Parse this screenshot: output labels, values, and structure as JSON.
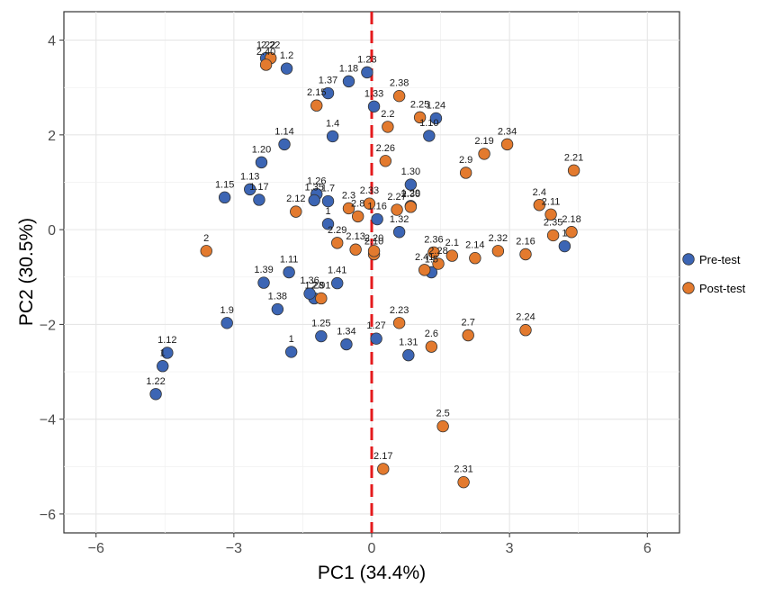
{
  "chart_data": {
    "type": "scatter",
    "title": "",
    "xlabel": "PC1 (34.4%)",
    "ylabel": "PC2 (30.5%)",
    "xlim": [
      -6.7,
      6.7
    ],
    "ylim": [
      -6.4,
      4.6
    ],
    "xticks": [
      -6,
      -3,
      0,
      3,
      6
    ],
    "yticks": [
      -6,
      -4,
      -2,
      0,
      2,
      4
    ],
    "grid": true,
    "reference_line": {
      "axis": "x",
      "value": 0,
      "color": "#e41a1c",
      "style": "dashed"
    },
    "legend": {
      "position": "right"
    },
    "series": [
      {
        "name": "Pre-test",
        "color": "#3c65b4",
        "points": [
          {
            "label": "1",
            "x": -1.75,
            "y": -2.58
          },
          {
            "label": "1",
            "x": 4.2,
            "y": -0.35
          },
          {
            "label": "1.2",
            "x": -1.85,
            "y": 3.4
          },
          {
            "label": "1",
            "x": -4.55,
            "y": -2.88
          },
          {
            "label": "1",
            "x": -0.95,
            "y": 0.12
          },
          {
            "label": "1.4",
            "x": -0.85,
            "y": 1.97
          },
          {
            "label": "1.7",
            "x": -0.95,
            "y": 0.6
          },
          {
            "label": "1.9",
            "x": -3.15,
            "y": -1.97
          },
          {
            "label": "1.10",
            "x": 1.25,
            "y": 1.98
          },
          {
            "label": "1.11",
            "x": -1.8,
            "y": -0.9
          },
          {
            "label": "1.12",
            "x": -4.45,
            "y": -2.6
          },
          {
            "label": "1.13",
            "x": -2.65,
            "y": 0.85
          },
          {
            "label": "1.14",
            "x": -1.9,
            "y": 1.8
          },
          {
            "label": "1.15",
            "x": -3.2,
            "y": 0.68
          },
          {
            "label": "1.16",
            "x": 0.12,
            "y": 0.22
          },
          {
            "label": "1.17",
            "x": -2.45,
            "y": 0.63
          },
          {
            "label": "1.18",
            "x": -0.5,
            "y": 3.13
          },
          {
            "label": "1.20",
            "x": -2.4,
            "y": 1.42
          },
          {
            "label": "1.22",
            "x": -4.7,
            "y": -3.47
          },
          {
            "label": "1.22",
            "x": -2.3,
            "y": 3.62
          },
          {
            "label": "1.23",
            "x": -0.1,
            "y": 3.32
          },
          {
            "label": "1.24",
            "x": 1.4,
            "y": 2.35
          },
          {
            "label": "1.25",
            "x": -1.1,
            "y": -2.25
          },
          {
            "label": "1.26",
            "x": -1.2,
            "y": 0.75
          },
          {
            "label": "1.27",
            "x": 0.1,
            "y": -2.3
          },
          {
            "label": "1.28",
            "x": -1.25,
            "y": -1.45
          },
          {
            "label": "1.30",
            "x": 0.85,
            "y": 0.95
          },
          {
            "label": "1.31",
            "x": 0.8,
            "y": -2.65
          },
          {
            "label": "1.32",
            "x": 0.6,
            "y": -0.05
          },
          {
            "label": "1.33",
            "x": 0.05,
            "y": 2.6
          },
          {
            "label": "1.34",
            "x": -0.55,
            "y": -2.42
          },
          {
            "label": "1.35",
            "x": -1.25,
            "y": 0.62
          },
          {
            "label": "1.36",
            "x": -1.35,
            "y": -1.35
          },
          {
            "label": "1.37",
            "x": -0.95,
            "y": 2.88
          },
          {
            "label": "1.38",
            "x": -2.05,
            "y": -1.68
          },
          {
            "label": "1.39",
            "x": -2.35,
            "y": -1.12
          },
          {
            "label": "1.41",
            "x": -0.75,
            "y": -1.13
          },
          {
            "label": "1.5",
            "x": 1.3,
            "y": -0.9
          },
          {
            "label": "1.29",
            "x": 0.85,
            "y": 0.5
          }
        ]
      },
      {
        "name": "Post-test",
        "color": "#e37a2e",
        "points": [
          {
            "label": "2",
            "x": -3.6,
            "y": -0.45
          },
          {
            "label": "2.1",
            "x": 1.75,
            "y": -0.55
          },
          {
            "label": "2.2",
            "x": 0.35,
            "y": 2.17
          },
          {
            "label": "2.3",
            "x": -0.5,
            "y": 0.45
          },
          {
            "label": "2.4",
            "x": 3.65,
            "y": 0.52
          },
          {
            "label": "2.5",
            "x": 1.55,
            "y": -4.15
          },
          {
            "label": "2.6",
            "x": 1.3,
            "y": -2.47
          },
          {
            "label": "2.7",
            "x": 2.1,
            "y": -2.23
          },
          {
            "label": "2.8",
            "x": -0.3,
            "y": 0.28
          },
          {
            "label": "2.9",
            "x": 2.05,
            "y": 1.2
          },
          {
            "label": "2.10",
            "x": 0.05,
            "y": -0.52
          },
          {
            "label": "2.11",
            "x": 3.9,
            "y": 0.32
          },
          {
            "label": "2.12",
            "x": -1.65,
            "y": 0.38
          },
          {
            "label": "2.13",
            "x": -0.35,
            "y": -0.42
          },
          {
            "label": "2.14",
            "x": 2.25,
            "y": -0.6
          },
          {
            "label": "2.15",
            "x": -1.2,
            "y": 2.62
          },
          {
            "label": "2.16",
            "x": 3.35,
            "y": -0.52
          },
          {
            "label": "2.17",
            "x": 0.25,
            "y": -5.05
          },
          {
            "label": "2.18",
            "x": 4.35,
            "y": -0.05
          },
          {
            "label": "2.19",
            "x": 2.45,
            "y": 1.6
          },
          {
            "label": "2.20",
            "x": 0.05,
            "y": -0.45
          },
          {
            "label": "2.21",
            "x": 4.4,
            "y": 1.25
          },
          {
            "label": "2.22",
            "x": -2.2,
            "y": 3.62
          },
          {
            "label": "2.23",
            "x": 0.6,
            "y": -1.97
          },
          {
            "label": "2.24",
            "x": 3.35,
            "y": -2.12
          },
          {
            "label": "2.25",
            "x": 1.05,
            "y": 2.37
          },
          {
            "label": "2.26",
            "x": 0.3,
            "y": 1.45
          },
          {
            "label": "2.27",
            "x": 0.55,
            "y": 0.42
          },
          {
            "label": "2.28",
            "x": 1.45,
            "y": -0.72
          },
          {
            "label": "2.29",
            "x": -0.75,
            "y": -0.28
          },
          {
            "label": "2.30",
            "x": 0.85,
            "y": 0.48
          },
          {
            "label": "2.31",
            "x": 2.0,
            "y": -5.33
          },
          {
            "label": "2.32",
            "x": 2.75,
            "y": -0.45
          },
          {
            "label": "2.33",
            "x": -0.05,
            "y": 0.55
          },
          {
            "label": "2.34",
            "x": 2.95,
            "y": 1.8
          },
          {
            "label": "2.35",
            "x": 3.95,
            "y": -0.12
          },
          {
            "label": "2.36",
            "x": 1.35,
            "y": -0.48
          },
          {
            "label": "2.38",
            "x": 0.6,
            "y": 2.82
          },
          {
            "label": "2.40",
            "x": -2.3,
            "y": 3.48
          },
          {
            "label": "2.41",
            "x": 1.15,
            "y": -0.85
          },
          {
            "label": "2.91",
            "x": -1.1,
            "y": -1.45
          }
        ]
      }
    ]
  }
}
